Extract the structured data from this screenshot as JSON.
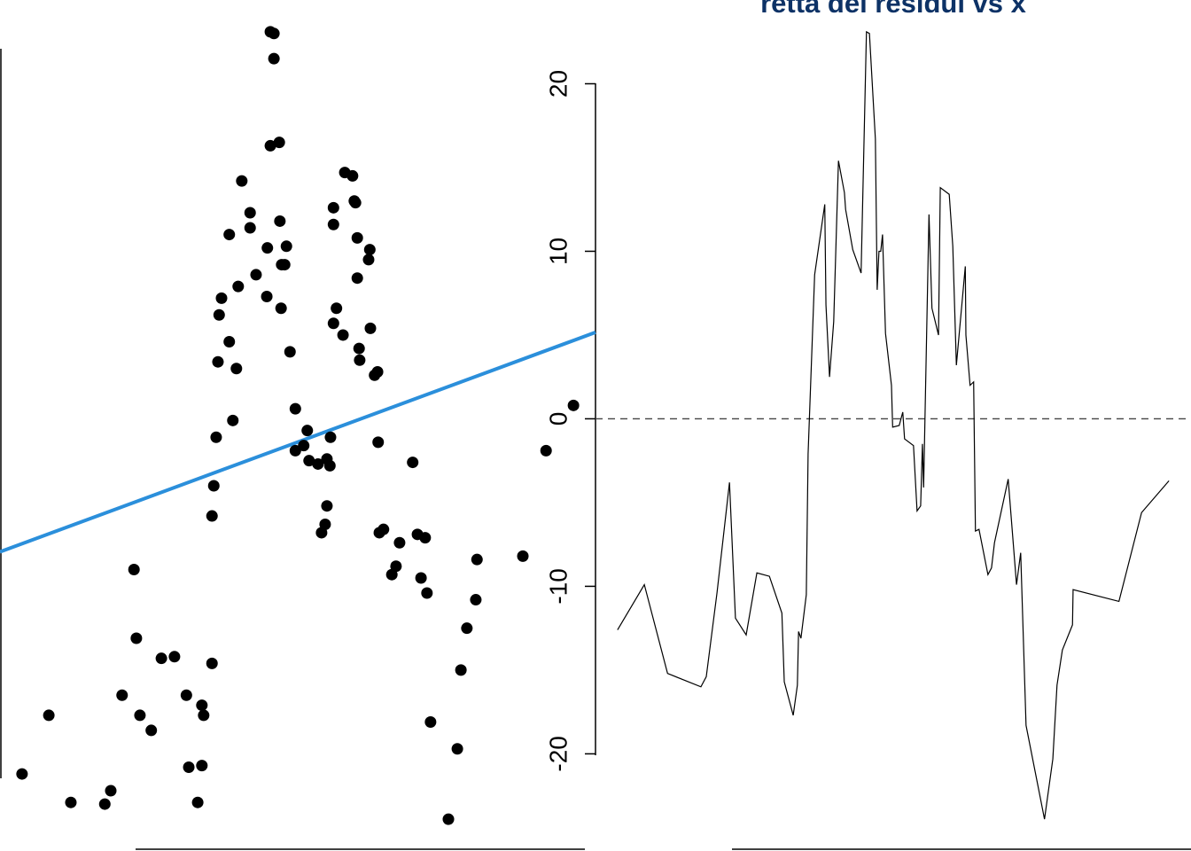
{
  "chart_data": [
    {
      "type": "scatter",
      "x": [
        3.7,
        8.2,
        11.9,
        17.6,
        18.6,
        20.5,
        22.5,
        22.9,
        23.5,
        25.4,
        27.1,
        29.3,
        31.3,
        31.7,
        33.2,
        33.9,
        33.9,
        34.2,
        35.6,
        35.6,
        35.9,
        36.3,
        36.6,
        36.8,
        37.2,
        38.5,
        38.5,
        39.1,
        39.7,
        40.0,
        40.6,
        42.0,
        42.0,
        43.0,
        44.8,
        44.9,
        45.4,
        46.0,
        46.0,
        45.4,
        46.9,
        47.0,
        47.2,
        47.3,
        47.8,
        48.1,
        48.7,
        49.6,
        49.6,
        51.0,
        51.6,
        51.9,
        53.4,
        54.0,
        54.6,
        54.9,
        54.9,
        55.4,
        55.5,
        56.0,
        56.0,
        56.0,
        56.5,
        57.6,
        57.9,
        59.2,
        59.5,
        59.7,
        60.0,
        60.0,
        60.3,
        60.4,
        62.2,
        62.1,
        61.9,
        62.9,
        63.4,
        63.5,
        63.7,
        64.4,
        65.8,
        66.5,
        67.1,
        69.3,
        70.1,
        70.7,
        71.4,
        71.7,
        72.3,
        75.3,
        76.8,
        77.4,
        78.4,
        79.9,
        80.1,
        87.8,
        91.7,
        96.3
      ],
      "y": [
        -21.2,
        -17.7,
        -22.9,
        -23.0,
        -22.2,
        -16.5,
        -9.0,
        -13.1,
        -17.7,
        -18.6,
        -14.3,
        -14.2,
        -16.5,
        -20.8,
        -22.9,
        -20.7,
        -17.1,
        -17.7,
        -14.6,
        -5.8,
        -4.0,
        -1.1,
        3.4,
        6.2,
        7.2,
        11.0,
        4.6,
        -0.1,
        3.0,
        7.9,
        14.2,
        12.3,
        11.4,
        8.6,
        7.3,
        10.2,
        23.1,
        23.0,
        21.5,
        16.3,
        16.5,
        11.8,
        6.6,
        9.2,
        9.2,
        10.3,
        4.0,
        0.6,
        -1.9,
        -1.6,
        -0.7,
        -2.5,
        -2.7,
        -6.8,
        -6.3,
        -2.4,
        -5.2,
        -2.8,
        -1.1,
        12.6,
        11.6,
        5.7,
        6.6,
        5.0,
        14.7,
        14.5,
        13.0,
        12.9,
        10.8,
        8.4,
        4.2,
        3.5,
        5.4,
        10.1,
        9.5,
        2.6,
        2.8,
        -1.4,
        -6.8,
        -6.6,
        -9.3,
        -8.8,
        -7.4,
        -2.6,
        -6.9,
        -9.5,
        -7.1,
        -10.4,
        -18.1,
        -23.9,
        -19.7,
        -15.0,
        -12.5,
        -10.8,
        -8.4,
        -8.2,
        -1.9,
        0.8
      ],
      "color": "#000000",
      "regression": {
        "intercept": -7.94,
        "slope": 0.131,
        "color": "#2b8fdb"
      },
      "xlim": [
        0,
        100
      ],
      "ylim": [
        -25.8,
        25.0
      ]
    },
    {
      "type": "line",
      "title": "retta dei residui vs x",
      "x": [
        3.7,
        8.2,
        12.1,
        17.7,
        18.6,
        20.4,
        22.5,
        23.5,
        25.3,
        27.1,
        29.2,
        31.3,
        31.7,
        33.2,
        33.9,
        34.1,
        34.5,
        35.4,
        35.7,
        36.8,
        38.5,
        38.7,
        39.3,
        40.0,
        40.8,
        41.8,
        42.0,
        43.2,
        44.6,
        45.5,
        46.0,
        47.0,
        47.3,
        47.6,
        47.9,
        48.2,
        48.7,
        49.7,
        49.9,
        51.0,
        51.6,
        51.9,
        53.4,
        54.0,
        54.6,
        54.9,
        55.1,
        56.0,
        56.5,
        57.6,
        57.9,
        59.4,
        60.0,
        60.6,
        62.1,
        62.2,
        62.9,
        63.5,
        63.8,
        64.4,
        65.9,
        66.5,
        67.0,
        69.3,
        70.7,
        71.4,
        72.3,
        75.4,
        76.8,
        77.5,
        78.4,
        80.1,
        80.2,
        87.9,
        91.7,
        96.3
      ],
      "values": [
        -12.6,
        -9.9,
        -15.2,
        -16.0,
        -15.4,
        -10.4,
        -3.8,
        -11.9,
        -12.9,
        -9.2,
        -9.4,
        -11.6,
        -15.7,
        -17.7,
        -15.9,
        -12.7,
        -13.1,
        -10.5,
        -2.1,
        8.6,
        12.8,
        6.8,
        2.5,
        5.8,
        15.4,
        13.5,
        12.5,
        10.1,
        8.7,
        23.1,
        23.0,
        16.7,
        7.7,
        10.0,
        10.0,
        11.0,
        5.1,
        2.0,
        -0.5,
        -0.4,
        0.4,
        -1.2,
        -1.6,
        -5.5,
        -5.2,
        -1.5,
        -4.1,
        12.2,
        6.6,
        5.0,
        13.8,
        13.4,
        10.3,
        3.2,
        9.1,
        5.0,
        2.0,
        2.2,
        -6.7,
        -6.6,
        -9.3,
        -8.9,
        -7.4,
        -3.6,
        -9.9,
        -8.0,
        -18.3,
        -23.9,
        -20.3,
        -15.9,
        -13.8,
        -12.3,
        -10.2,
        -10.9,
        -5.6,
        -3.7
      ],
      "color": "#000000",
      "reference_line": 0,
      "xlim": [
        0,
        100
      ],
      "ylim": [
        -25.8,
        25.0
      ],
      "yticks": [
        -20,
        -10,
        0,
        10,
        20
      ]
    }
  ]
}
